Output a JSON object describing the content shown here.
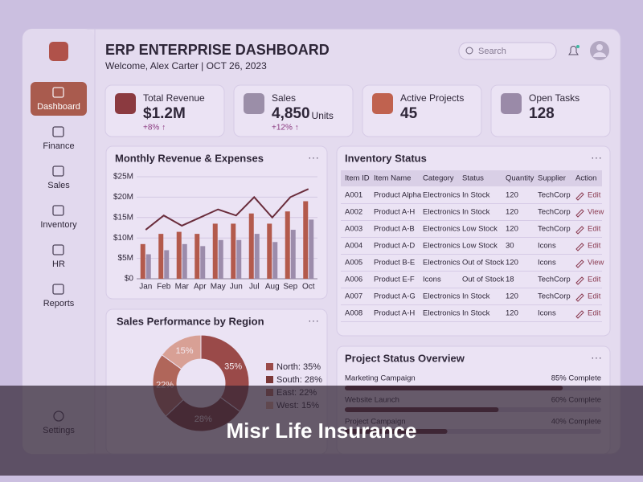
{
  "sidebar": {
    "nav": [
      "Dashboard",
      "Finance",
      "Sales",
      "Inventory",
      "HR",
      "Reports"
    ],
    "settings": "Settings"
  },
  "header": {
    "title": "ERP ENTERPRISE DASHBOARD",
    "subtitle": "Welcome, Alex Carter | OCT 26, 2023",
    "search_placeholder": "Search"
  },
  "kpis": [
    {
      "label": "Total Revenue",
      "value": "$1.2M",
      "change": "+8% ↑"
    },
    {
      "label": "Sales",
      "value": "4,850",
      "unit": "Units",
      "change": "+12% ↑"
    },
    {
      "label": "Active Projects",
      "value": "45"
    },
    {
      "label": "Open Tasks",
      "value": "128"
    }
  ],
  "revenue_chart": {
    "type": "bar",
    "title": "Monthly Revenue & Expenses",
    "categories": [
      "Jan",
      "Feb",
      "Mar",
      "Apr",
      "May",
      "Jun",
      "Jul",
      "Aug",
      "Sep",
      "Oct"
    ],
    "series": [
      {
        "color": "#b35a4c",
        "values": [
          8.5,
          11,
          11.5,
          11,
          13.5,
          13.5,
          16,
          13.5,
          16.5,
          19
        ]
      },
      {
        "color": "#9c8cab",
        "values": [
          6,
          7,
          8.5,
          8,
          9.5,
          9.5,
          11,
          9,
          12,
          14.5
        ]
      },
      {
        "type": "line",
        "color": "#6a2d3c",
        "values": [
          12,
          15.5,
          13,
          15,
          17,
          15.5,
          20,
          15,
          20,
          22
        ]
      }
    ],
    "ylim": [
      0,
      25
    ],
    "yticks": [
      {
        "value": 0,
        "label": "$0"
      },
      {
        "value": 5,
        "label": "$5M"
      },
      {
        "value": 10,
        "label": "$10M"
      },
      {
        "value": 15,
        "label": "$15M"
      },
      {
        "value": 20,
        "label": "$20M"
      },
      {
        "value": 25,
        "label": "$25M"
      }
    ],
    "grid": true
  },
  "region_chart": {
    "type": "pie",
    "title": "Sales Performance by Region",
    "values": [
      35,
      28,
      22,
      15
    ],
    "value_labels": [
      "35%",
      "28%",
      "22%",
      "15%"
    ],
    "legend_labels": [
      "North: 35%",
      "South: 28%",
      "East: 22%",
      "West: 15%"
    ],
    "colors": [
      "#9a4a49",
      "#7c3838",
      "#b0665a",
      "#d8a095"
    ]
  },
  "inventory": {
    "title": "Inventory Status",
    "columns": [
      "Item ID",
      "Item Name",
      "Category",
      "Status",
      "Quantity",
      "Supplier",
      "Action"
    ],
    "rows": [
      [
        "A001",
        "Product Alpha",
        "Electronics",
        "In Stock",
        120,
        "TechCorp",
        "Edit"
      ],
      [
        "A002",
        "Product A-H",
        "Electronics",
        "In Stock",
        120,
        "TechCorp",
        "View"
      ],
      [
        "A003",
        "Product A-B",
        "Electronics",
        "Low Stock",
        120,
        "TechCorp",
        "Edit"
      ],
      [
        "A004",
        "Product A-D",
        "Electronics",
        "Low Stock",
        30,
        "Icons",
        "Edit"
      ],
      [
        "A005",
        "Product B-E",
        "Electronics",
        "Out of Stock",
        120,
        "Icons",
        "View"
      ],
      [
        "A006",
        "Product E-F",
        "Icons",
        "Out of Stock",
        18,
        "TechCorp",
        "Edit"
      ],
      [
        "A007",
        "Product A-G",
        "Electronics",
        "In Stock",
        120,
        "TechCorp",
        "Edit"
      ],
      [
        "A008",
        "Product A-H",
        "Electronics",
        "In Stock",
        120,
        "Icons",
        "Edit"
      ]
    ]
  },
  "projects": {
    "title": "Project Status Overview",
    "items": [
      {
        "name": "Marketing Campaign",
        "value": 85,
        "label": "85% Complete"
      },
      {
        "name": "Website Launch",
        "value": 60,
        "label": "60% Complete"
      },
      {
        "name": "Project Campaign",
        "value": 40,
        "label": "40% Complete"
      }
    ]
  },
  "banner": "Misr Life Insurance"
}
